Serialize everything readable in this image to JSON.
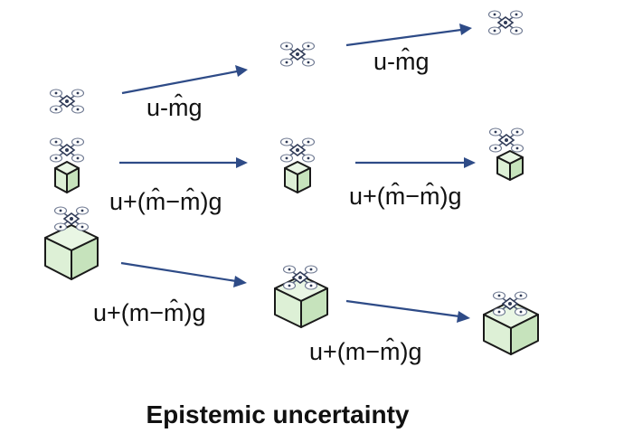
{
  "labels": {
    "row1_a": "u-m̂g",
    "row1_b": "u-m̂g",
    "row2_a": "u+(m̂−m̂)g",
    "row2_b": "u+(m̂−m̂)g",
    "row3_a": "u+(m−m̂)g",
    "row3_b": "u+(m−m̂)g"
  },
  "caption": "Epistemic uncertainty",
  "colors": {
    "arrow": "#2E4B87",
    "box_fill": "#DDF0D6",
    "outline": "#1a1a1a"
  },
  "icons": [
    "drone-icon",
    "payload-box-icon"
  ]
}
